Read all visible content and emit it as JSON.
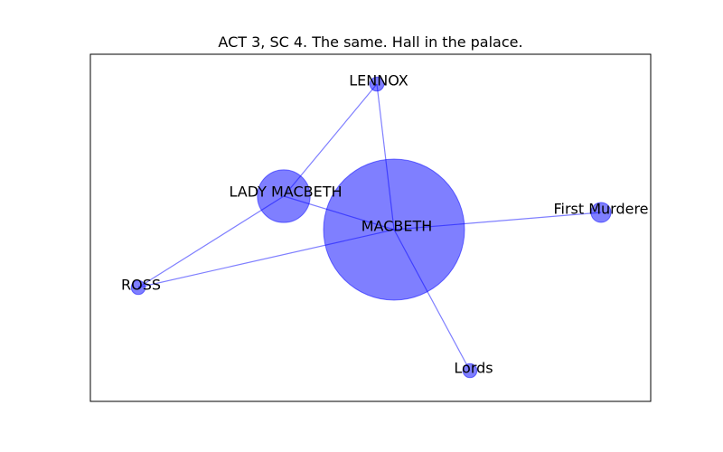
{
  "chart_data": {
    "type": "network",
    "title": "ACT 3, SC 4. The same. Hall in the palace.",
    "node_color": "#0000ff",
    "edge_color": "#0000ff",
    "nodes": [
      {
        "id": "MACBETH",
        "label": "MACBETH",
        "weight": 100
      },
      {
        "id": "LADY MACBETH",
        "label": "LADY MACBETH",
        "weight": 14
      },
      {
        "id": "LENNOX",
        "label": "LENNOX",
        "weight": 1
      },
      {
        "id": "First Murderer",
        "label": "First Murdere",
        "weight": 2
      },
      {
        "id": "ROSS",
        "label": "ROSS",
        "weight": 1
      },
      {
        "id": "Lords",
        "label": "Lords",
        "weight": 1
      }
    ],
    "edges": [
      [
        "MACBETH",
        "LADY MACBETH"
      ],
      [
        "MACBETH",
        "LENNOX"
      ],
      [
        "MACBETH",
        "First Murderer"
      ],
      [
        "MACBETH",
        "ROSS"
      ],
      [
        "MACBETH",
        "Lords"
      ],
      [
        "LADY MACBETH",
        "LENNOX"
      ],
      [
        "LADY MACBETH",
        "ROSS"
      ]
    ]
  }
}
